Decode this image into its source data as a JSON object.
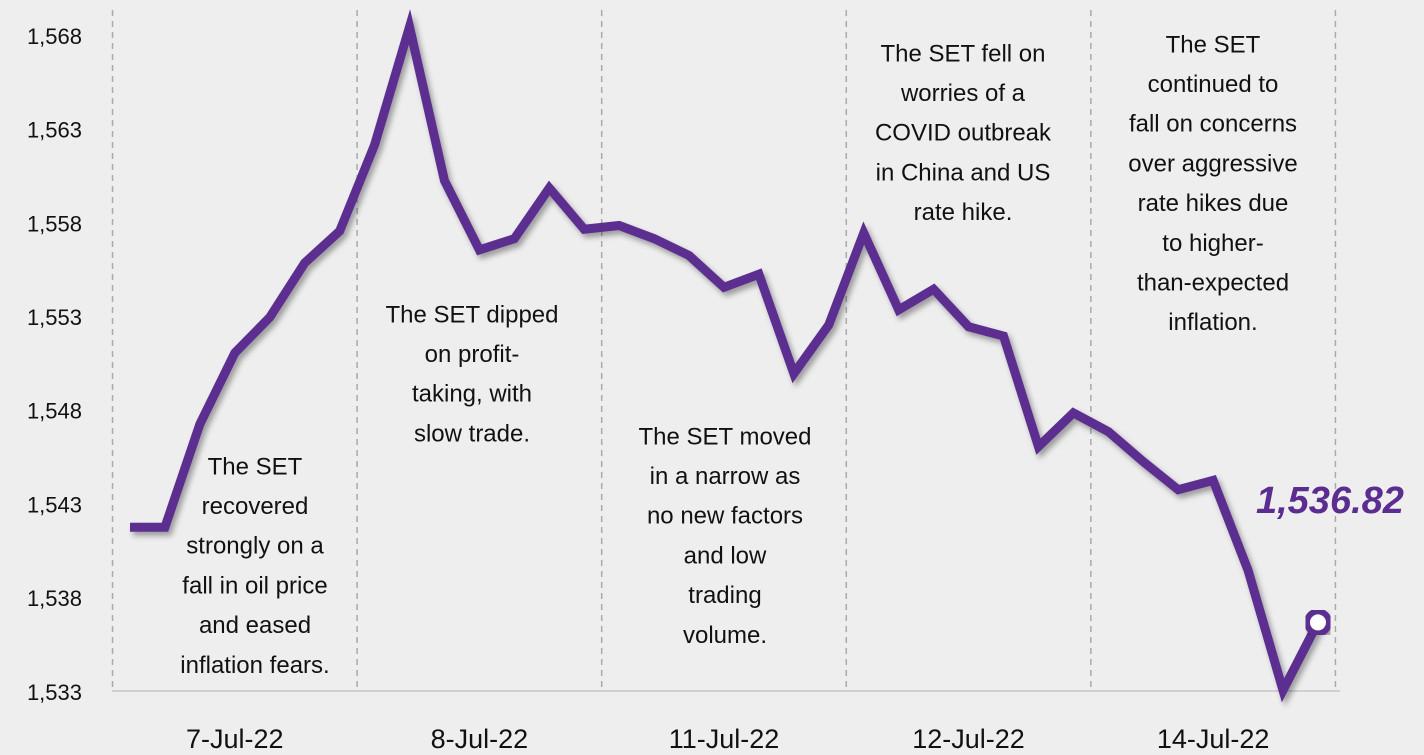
{
  "chart_data": {
    "type": "line",
    "categories": [
      null,
      null,
      null,
      "7-Jul-22",
      null,
      null,
      null,
      null,
      null,
      null,
      "8-Jul-22",
      null,
      null,
      null,
      null,
      null,
      null,
      "11-Jul-22",
      null,
      null,
      null,
      null,
      null,
      null,
      "12-Jul-22",
      null,
      null,
      null,
      null,
      null,
      null,
      "14-Jul-22",
      null,
      null,
      null
    ],
    "series": [
      {
        "name": "SET",
        "color": "#5b2d90",
        "values": [
          1541.9,
          1541.9,
          1547.4,
          1551.2,
          1553.1,
          1556.0,
          1557.7,
          1562.3,
          1568.6,
          1560.4,
          1556.7,
          1557.3,
          1560.0,
          1557.8,
          1558.0,
          1557.3,
          1556.4,
          1554.7,
          1555.4,
          1550.1,
          1552.7,
          1557.6,
          1553.5,
          1554.6,
          1552.6,
          1552.1,
          1546.2,
          1548.0,
          1547.0,
          1545.4,
          1543.9,
          1544.4,
          1539.6,
          1533.2,
          1536.82
        ],
        "value_labels": [
          null,
          null,
          null,
          null,
          null,
          null,
          null,
          null,
          null,
          null,
          null,
          null,
          null,
          null,
          null,
          null,
          null,
          null,
          null,
          null,
          null,
          null,
          null,
          null,
          null,
          null,
          null,
          null,
          null,
          null,
          null,
          null,
          null,
          null,
          "1,536.82"
        ]
      }
    ],
    "ylim": [
      1533,
      1569.5
    ],
    "yticks": [
      {
        "value": 1533,
        "label": "1,533"
      },
      {
        "value": 1538,
        "label": "1,538"
      },
      {
        "value": 1543,
        "label": "1,543"
      },
      {
        "value": 1548,
        "label": "1,548"
      },
      {
        "value": 1553,
        "label": "1,553"
      },
      {
        "value": 1558,
        "label": "1,558"
      },
      {
        "value": 1563,
        "label": "1,563"
      },
      {
        "value": 1568,
        "label": "1,568"
      }
    ],
    "grid": false,
    "annotations": [
      {
        "lines": [
          "The SET",
          "recovered",
          "strongly on a",
          "fall in oil price",
          "and eased",
          "inflation fears."
        ]
      },
      {
        "lines": [
          "The SET dipped",
          "on profit-",
          "taking, with",
          "slow trade."
        ]
      },
      {
        "lines": [
          "The SET moved",
          "in a narrow as",
          "no new factors",
          "and low",
          "trading",
          "volume."
        ]
      },
      {
        "lines": [
          "The SET fell on",
          "worries of a",
          "COVID outbreak",
          "in China and US",
          "rate hike."
        ]
      },
      {
        "lines": [
          "The SET",
          "continued to",
          "fall on concerns",
          "over aggressive",
          "rate hikes due",
          "to higher-",
          "than-expected",
          "inflation."
        ]
      }
    ]
  }
}
